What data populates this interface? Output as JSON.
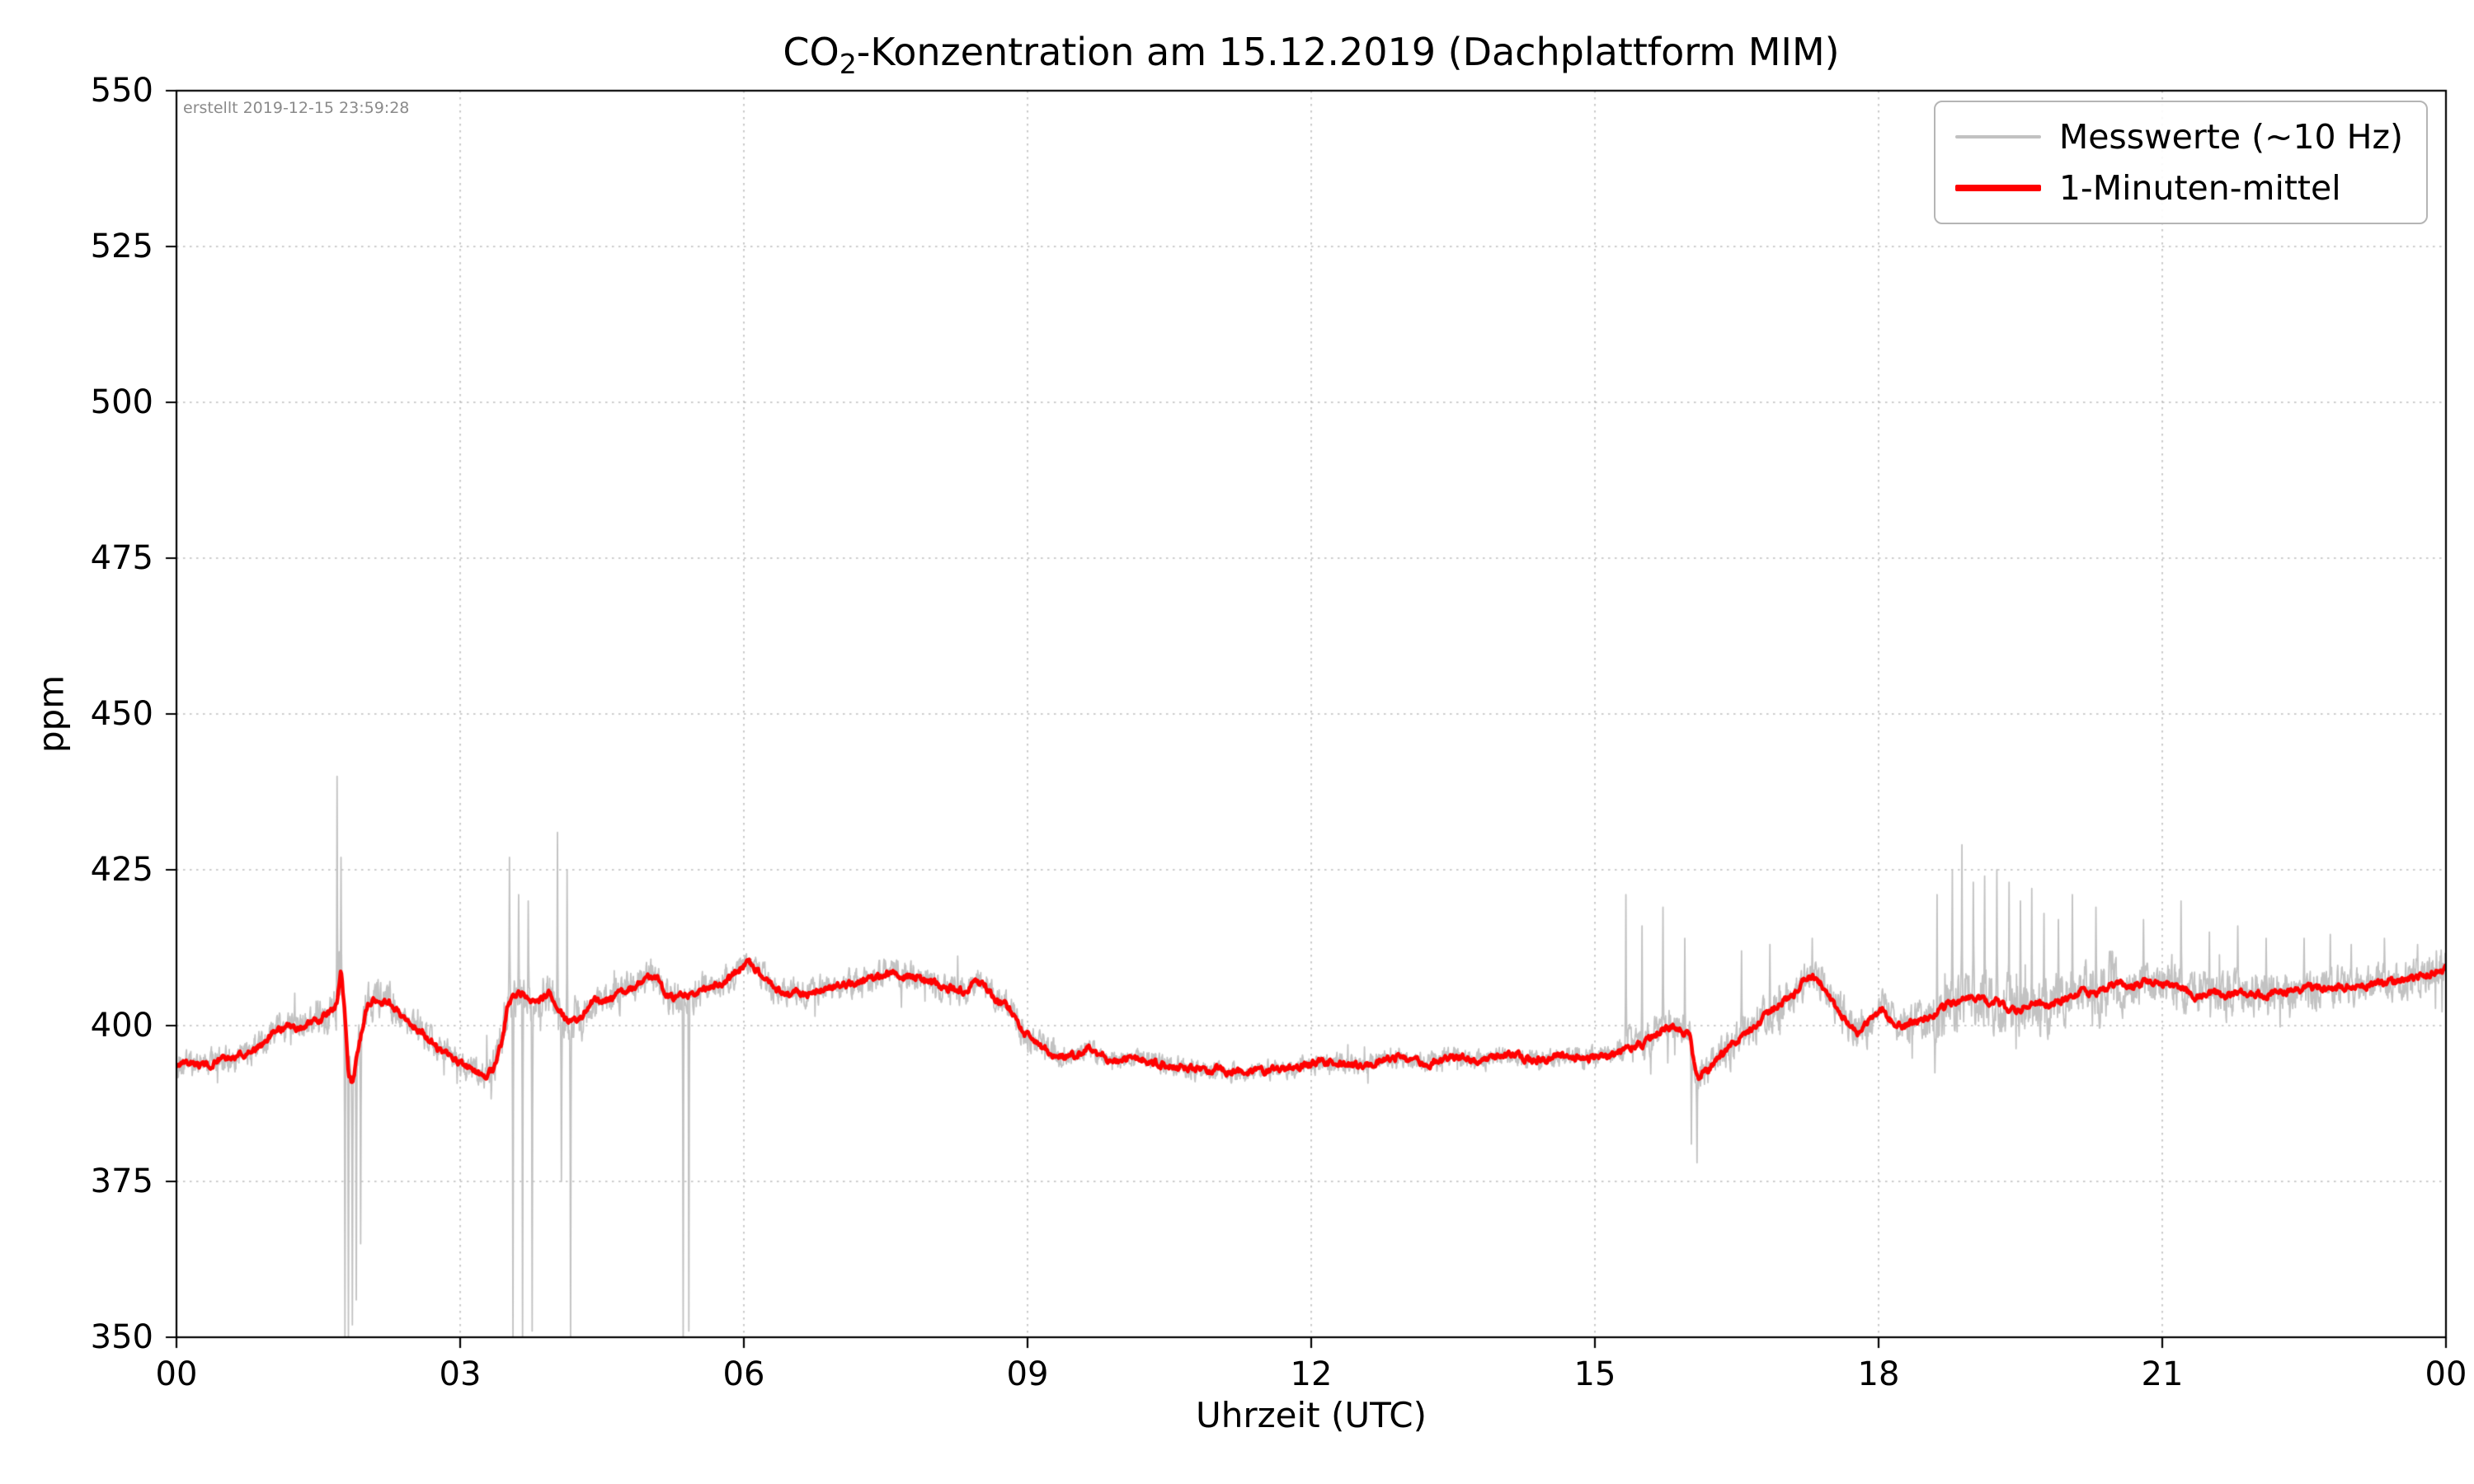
{
  "title": {
    "prefix": "CO",
    "sub": "2",
    "suffix": "-Konzentration am 15.12.2019 (Dachplattform MIM)"
  },
  "annotation": "erstellt 2019-12-15 23:59:28",
  "legend": {
    "items": [
      {
        "label": "Messwerte (~10 Hz)",
        "color": "#c2c2c2",
        "thickness": 4
      },
      {
        "label": "1-Minuten-mittel",
        "color": "#ff0000",
        "thickness": 8
      }
    ]
  },
  "chart_data": {
    "type": "line",
    "title": "CO2-Konzentration am 15.12.2019 (Dachplattform MIM)",
    "xlabel": "Uhrzeit (UTC)",
    "ylabel": "ppm",
    "xlim": [
      0,
      24
    ],
    "ylim": [
      350,
      550
    ],
    "xticks": [
      0,
      3,
      6,
      9,
      12,
      15,
      18,
      21,
      24
    ],
    "xtick_labels": [
      "00",
      "03",
      "06",
      "09",
      "12",
      "15",
      "18",
      "21",
      "00"
    ],
    "yticks": [
      350,
      375,
      400,
      425,
      450,
      475,
      500,
      525,
      550
    ],
    "ytick_labels": [
      "350",
      "375",
      "400",
      "425",
      "450",
      "475",
      "500",
      "525",
      "550"
    ],
    "grid": "dotted",
    "legend_position": "upper right",
    "series": [
      {
        "name": "Messwerte (~10 Hz)",
        "kind": "raw-10hz-noise-around-mean",
        "color": "#c2c2c2",
        "linewidth": 1.8,
        "noise_segments": [
          [
            0.0,
            1.5,
            2.2
          ],
          [
            1.5,
            2.3,
            3.2
          ],
          [
            2.3,
            3.3,
            2.2
          ],
          [
            3.3,
            4.3,
            3.8
          ],
          [
            4.3,
            5.6,
            2.7
          ],
          [
            5.6,
            8.8,
            2.2
          ],
          [
            8.8,
            9.3,
            2.4
          ],
          [
            9.3,
            15.2,
            1.6
          ],
          [
            15.2,
            16.3,
            2.7
          ],
          [
            16.3,
            17.6,
            3.0
          ],
          [
            17.6,
            18.5,
            3.2
          ],
          [
            18.5,
            20.6,
            4.8
          ],
          [
            20.6,
            22.3,
            3.5
          ],
          [
            22.3,
            24.0,
            3.0
          ]
        ],
        "spikes": [
          [
            1.7,
            440
          ],
          [
            1.74,
            427
          ],
          [
            1.78,
            350
          ],
          [
            1.82,
            350
          ],
          [
            1.86,
            352
          ],
          [
            1.9,
            356
          ],
          [
            1.95,
            365
          ],
          [
            3.52,
            427
          ],
          [
            3.56,
            350
          ],
          [
            3.62,
            421
          ],
          [
            3.66,
            350
          ],
          [
            3.72,
            420
          ],
          [
            3.76,
            351
          ],
          [
            4.03,
            431
          ],
          [
            4.07,
            375
          ],
          [
            4.13,
            425
          ],
          [
            4.17,
            350
          ],
          [
            5.36,
            350
          ],
          [
            5.42,
            351
          ],
          [
            15.33,
            421
          ],
          [
            15.5,
            416
          ],
          [
            15.72,
            419
          ],
          [
            15.95,
            414
          ],
          [
            16.02,
            381
          ],
          [
            16.08,
            378
          ],
          [
            16.55,
            412
          ],
          [
            16.85,
            413
          ],
          [
            17.3,
            414
          ],
          [
            18.62,
            421
          ],
          [
            18.78,
            425
          ],
          [
            18.88,
            429
          ],
          [
            19.0,
            423
          ],
          [
            19.12,
            424
          ],
          [
            19.25,
            425
          ],
          [
            19.38,
            423
          ],
          [
            19.5,
            420
          ],
          [
            19.62,
            422
          ],
          [
            19.75,
            418
          ],
          [
            19.9,
            417
          ],
          [
            20.05,
            421
          ],
          [
            20.3,
            419
          ],
          [
            20.8,
            417
          ],
          [
            21.2,
            420
          ],
          [
            21.5,
            415
          ],
          [
            21.8,
            416
          ],
          [
            22.1,
            414
          ],
          [
            22.5,
            414
          ],
          [
            23.0,
            413
          ],
          [
            23.35,
            414
          ],
          [
            23.7,
            413
          ],
          [
            23.9,
            412
          ]
        ]
      },
      {
        "name": "1-Minuten-mittel",
        "color": "#ff0000",
        "linewidth": 4.5,
        "points": [
          [
            0.0,
            393.5
          ],
          [
            0.15,
            394
          ],
          [
            0.3,
            393.5
          ],
          [
            0.45,
            394.5
          ],
          [
            0.6,
            395
          ],
          [
            0.75,
            395.5
          ],
          [
            0.9,
            397
          ],
          [
            1.0,
            398.5
          ],
          [
            1.1,
            399.5
          ],
          [
            1.2,
            400
          ],
          [
            1.3,
            399.5
          ],
          [
            1.4,
            400.5
          ],
          [
            1.5,
            401
          ],
          [
            1.6,
            402
          ],
          [
            1.65,
            402.5
          ],
          [
            1.7,
            403.5
          ],
          [
            1.74,
            409
          ],
          [
            1.78,
            402
          ],
          [
            1.82,
            392
          ],
          [
            1.86,
            390.5
          ],
          [
            1.92,
            396
          ],
          [
            2.0,
            402.5
          ],
          [
            2.05,
            404
          ],
          [
            2.15,
            404
          ],
          [
            2.25,
            403.5
          ],
          [
            2.35,
            402
          ],
          [
            2.45,
            400.5
          ],
          [
            2.55,
            399.5
          ],
          [
            2.65,
            398
          ],
          [
            2.75,
            396.5
          ],
          [
            2.85,
            395.5
          ],
          [
            2.95,
            394.5
          ],
          [
            3.05,
            393.5
          ],
          [
            3.15,
            392.5
          ],
          [
            3.25,
            392
          ],
          [
            3.35,
            393
          ],
          [
            3.45,
            398
          ],
          [
            3.5,
            403
          ],
          [
            3.55,
            404.5
          ],
          [
            3.65,
            405
          ],
          [
            3.75,
            403.5
          ],
          [
            3.85,
            404
          ],
          [
            3.95,
            405.5
          ],
          [
            4.0,
            403.5
          ],
          [
            4.1,
            401.5
          ],
          [
            4.2,
            400.5
          ],
          [
            4.3,
            402
          ],
          [
            4.4,
            404
          ],
          [
            4.5,
            404
          ],
          [
            4.6,
            404.5
          ],
          [
            4.7,
            405
          ],
          [
            4.8,
            406
          ],
          [
            4.9,
            407
          ],
          [
            5.0,
            408
          ],
          [
            5.1,
            407.5
          ],
          [
            5.15,
            405.5
          ],
          [
            5.25,
            404.5
          ],
          [
            5.35,
            405
          ],
          [
            5.45,
            405
          ],
          [
            5.55,
            405.5
          ],
          [
            5.65,
            406.5
          ],
          [
            5.75,
            407
          ],
          [
            5.85,
            407.5
          ],
          [
            5.95,
            409
          ],
          [
            6.05,
            410
          ],
          [
            6.15,
            409
          ],
          [
            6.25,
            407
          ],
          [
            6.35,
            405.5
          ],
          [
            6.45,
            405
          ],
          [
            6.55,
            405.5
          ],
          [
            6.65,
            405
          ],
          [
            6.75,
            405.5
          ],
          [
            6.85,
            406
          ],
          [
            6.95,
            406
          ],
          [
            7.05,
            406.5
          ],
          [
            7.15,
            407
          ],
          [
            7.25,
            407
          ],
          [
            7.35,
            407.5
          ],
          [
            7.45,
            408
          ],
          [
            7.55,
            408.5
          ],
          [
            7.65,
            408
          ],
          [
            7.75,
            408
          ],
          [
            7.85,
            407.5
          ],
          [
            7.95,
            407
          ],
          [
            8.05,
            406.5
          ],
          [
            8.15,
            406
          ],
          [
            8.25,
            406
          ],
          [
            8.35,
            405.5
          ],
          [
            8.45,
            407
          ],
          [
            8.55,
            406.5
          ],
          [
            8.65,
            404.5
          ],
          [
            8.75,
            403.5
          ],
          [
            8.85,
            401.5
          ],
          [
            8.95,
            399
          ],
          [
            9.05,
            397.5
          ],
          [
            9.15,
            396.5
          ],
          [
            9.25,
            395.5
          ],
          [
            9.35,
            395
          ],
          [
            9.45,
            395
          ],
          [
            9.55,
            395.5
          ],
          [
            9.65,
            396.5
          ],
          [
            9.75,
            395.5
          ],
          [
            9.85,
            394.5
          ],
          [
            9.95,
            394.5
          ],
          [
            10.1,
            395
          ],
          [
            10.25,
            394.5
          ],
          [
            10.4,
            394
          ],
          [
            10.55,
            393.5
          ],
          [
            10.7,
            393
          ],
          [
            10.85,
            393
          ],
          [
            11.0,
            393
          ],
          [
            11.15,
            392.5
          ],
          [
            11.3,
            392.5
          ],
          [
            11.45,
            392.5
          ],
          [
            11.6,
            393
          ],
          [
            11.75,
            393
          ],
          [
            11.9,
            393.5
          ],
          [
            12.05,
            394
          ],
          [
            12.2,
            394
          ],
          [
            12.35,
            394
          ],
          [
            12.5,
            393.5
          ],
          [
            12.65,
            394
          ],
          [
            12.8,
            394.5
          ],
          [
            12.95,
            395
          ],
          [
            13.1,
            394.5
          ],
          [
            13.25,
            394
          ],
          [
            13.4,
            394.5
          ],
          [
            13.55,
            395
          ],
          [
            13.7,
            394.5
          ],
          [
            13.85,
            394.5
          ],
          [
            14.0,
            395
          ],
          [
            14.15,
            395.5
          ],
          [
            14.3,
            394.5
          ],
          [
            14.45,
            394.5
          ],
          [
            14.6,
            395
          ],
          [
            14.75,
            395.5
          ],
          [
            14.9,
            394.5
          ],
          [
            15.05,
            395
          ],
          [
            15.2,
            395.5
          ],
          [
            15.35,
            396.5
          ],
          [
            15.5,
            397
          ],
          [
            15.6,
            398
          ],
          [
            15.7,
            399.5
          ],
          [
            15.8,
            400
          ],
          [
            15.9,
            399.5
          ],
          [
            16.0,
            398.5
          ],
          [
            16.05,
            394
          ],
          [
            16.1,
            391.5
          ],
          [
            16.2,
            393
          ],
          [
            16.3,
            395
          ],
          [
            16.4,
            396
          ],
          [
            16.5,
            397.5
          ],
          [
            16.6,
            398.5
          ],
          [
            16.7,
            400
          ],
          [
            16.8,
            401.5
          ],
          [
            16.9,
            403
          ],
          [
            17.0,
            404
          ],
          [
            17.1,
            405
          ],
          [
            17.2,
            407
          ],
          [
            17.3,
            408
          ],
          [
            17.4,
            406.5
          ],
          [
            17.5,
            404
          ],
          [
            17.6,
            402
          ],
          [
            17.7,
            400
          ],
          [
            17.78,
            399
          ],
          [
            17.85,
            400
          ],
          [
            17.95,
            401.5
          ],
          [
            18.05,
            402.5
          ],
          [
            18.15,
            400.5
          ],
          [
            18.25,
            400
          ],
          [
            18.35,
            400.5
          ],
          [
            18.45,
            401
          ],
          [
            18.55,
            401.5
          ],
          [
            18.65,
            402.5
          ],
          [
            18.75,
            403.5
          ],
          [
            18.85,
            404
          ],
          [
            18.95,
            404.5
          ],
          [
            19.05,
            404.5
          ],
          [
            19.15,
            403.5
          ],
          [
            19.25,
            404
          ],
          [
            19.35,
            403
          ],
          [
            19.45,
            402.5
          ],
          [
            19.55,
            403
          ],
          [
            19.65,
            404
          ],
          [
            19.75,
            403
          ],
          [
            19.85,
            403.5
          ],
          [
            19.95,
            404
          ],
          [
            20.05,
            404.5
          ],
          [
            20.15,
            405.5
          ],
          [
            20.25,
            405
          ],
          [
            20.35,
            405.5
          ],
          [
            20.45,
            406.5
          ],
          [
            20.55,
            407
          ],
          [
            20.65,
            406
          ],
          [
            20.75,
            406.5
          ],
          [
            20.85,
            407
          ],
          [
            20.95,
            406.5
          ],
          [
            21.05,
            407
          ],
          [
            21.15,
            406
          ],
          [
            21.25,
            405.5
          ],
          [
            21.35,
            404.5
          ],
          [
            21.45,
            405
          ],
          [
            21.55,
            405.5
          ],
          [
            21.65,
            404.5
          ],
          [
            21.75,
            405
          ],
          [
            21.85,
            405.5
          ],
          [
            21.95,
            405
          ],
          [
            22.1,
            405
          ],
          [
            22.25,
            405.5
          ],
          [
            22.4,
            405.5
          ],
          [
            22.55,
            406
          ],
          [
            22.7,
            406
          ],
          [
            22.85,
            406
          ],
          [
            23.0,
            406.5
          ],
          [
            23.15,
            406.5
          ],
          [
            23.3,
            407
          ],
          [
            23.45,
            407
          ],
          [
            23.6,
            407.5
          ],
          [
            23.75,
            408
          ],
          [
            23.9,
            408.5
          ],
          [
            24.0,
            409
          ]
        ]
      }
    ]
  }
}
